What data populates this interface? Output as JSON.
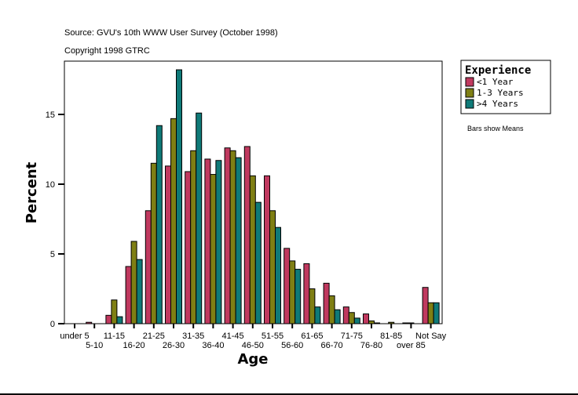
{
  "chart_data": {
    "type": "bar",
    "source_text": "Source: GVU's 10th WWW User Survey (October 1998)",
    "copyright_text": "Copyright 1998 GTRC",
    "xlabel": "Age",
    "ylabel": "Percent",
    "note": "Bars show Means",
    "ylim": [
      0,
      18.8
    ],
    "yticks": [
      0,
      5,
      10,
      15
    ],
    "grid": false,
    "legend_title": "Experience",
    "legend_position": "right",
    "categories": [
      "under 5",
      "5-10",
      "11-15",
      "16-20",
      "21-25",
      "26-30",
      "31-35",
      "36-40",
      "41-45",
      "46-50",
      "51-55",
      "56-60",
      "61-65",
      "66-70",
      "71-75",
      "76-80",
      "81-85",
      "over 85",
      "Not Say"
    ],
    "series": [
      {
        "name": "<1 Year",
        "color": "#c0395f",
        "values": [
          0,
          0.1,
          0.6,
          4.1,
          8.1,
          11.3,
          10.9,
          11.8,
          12.6,
          12.7,
          10.6,
          5.4,
          4.3,
          2.9,
          1.2,
          0.7,
          0,
          0.05,
          2.6
        ]
      },
      {
        "name": "1-3 Years",
        "color": "#7f7f14",
        "values": [
          0,
          0,
          1.7,
          5.9,
          11.5,
          14.7,
          12.4,
          10.7,
          12.4,
          10.6,
          8.1,
          4.5,
          2.5,
          2.0,
          0.8,
          0.2,
          0.1,
          0.05,
          1.5
        ]
      },
      {
        "name": ">4 Years",
        "color": "#0f7a78",
        "values": [
          0,
          0,
          0.5,
          4.6,
          14.2,
          18.2,
          15.1,
          11.7,
          11.9,
          8.7,
          6.9,
          3.9,
          1.2,
          1.0,
          0.4,
          0.05,
          0,
          0,
          1.5
        ]
      }
    ]
  }
}
